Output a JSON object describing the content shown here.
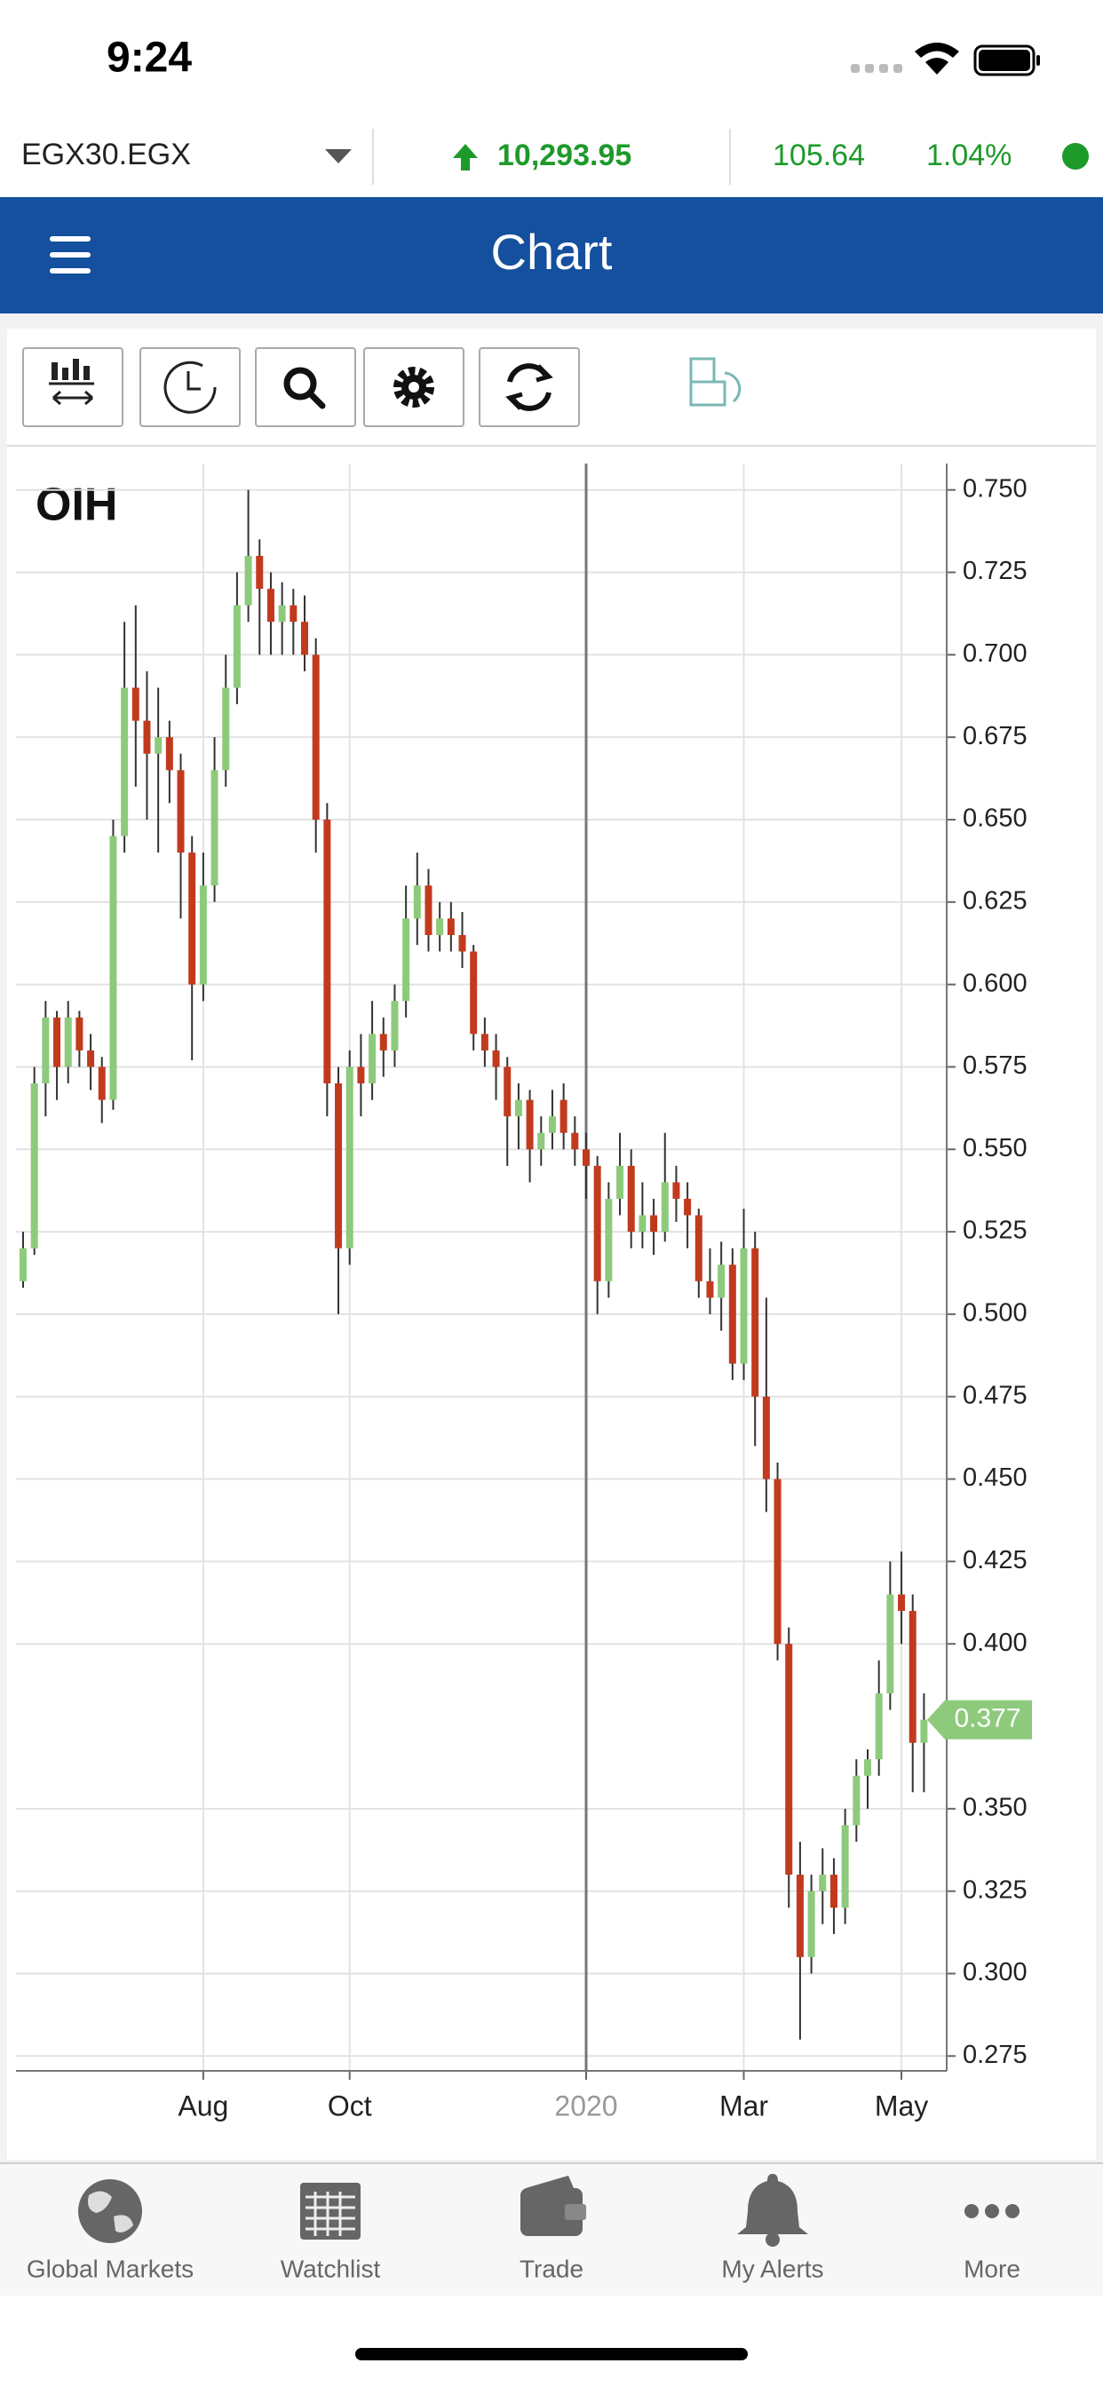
{
  "status_bar": {
    "time": "9:24"
  },
  "ticker": {
    "symbol": "EGX30.EGX",
    "price": "10,293.95",
    "change": "105.64",
    "change_pct": "1.04%"
  },
  "header": {
    "title": "Chart"
  },
  "chart_data": {
    "type": "candlestick",
    "title": "OIH",
    "categories": [
      null,
      null,
      null,
      null,
      null,
      null,
      null,
      null,
      null,
      null,
      null,
      null,
      null,
      null,
      null,
      null,
      "Aug",
      null,
      null,
      null,
      null,
      null,
      null,
      null,
      null,
      null,
      null,
      null,
      null,
      "Oct",
      null,
      null,
      null,
      null,
      null,
      null,
      null,
      null,
      null,
      null,
      null,
      null,
      null,
      null,
      null,
      null,
      null,
      null,
      null,
      null,
      "2020",
      null,
      null,
      null,
      null,
      null,
      null,
      null,
      null,
      null,
      null,
      null,
      null,
      null,
      "Mar",
      null,
      null,
      null,
      null,
      null,
      null,
      null,
      null,
      null,
      null,
      null,
      null,
      null,
      "May",
      null,
      null
    ],
    "open": [
      0.51,
      0.52,
      0.57,
      0.59,
      0.575,
      0.59,
      0.58,
      0.575,
      0.565,
      0.645,
      0.69,
      0.68,
      0.67,
      0.675,
      0.665,
      0.64,
      0.6,
      0.63,
      0.665,
      0.69,
      0.715,
      0.73,
      0.72,
      0.71,
      0.715,
      0.71,
      0.7,
      0.65,
      0.57,
      0.52,
      0.575,
      0.57,
      0.585,
      0.58,
      0.595,
      0.62,
      0.63,
      0.615,
      0.62,
      0.615,
      0.61,
      0.585,
      0.58,
      0.575,
      0.56,
      0.565,
      0.55,
      0.555,
      0.565,
      0.555,
      0.55,
      0.545,
      0.51,
      0.535,
      0.545,
      0.525,
      0.53,
      0.525,
      0.54,
      0.535,
      0.53,
      0.51,
      0.505,
      0.515,
      0.485,
      0.52,
      0.475,
      0.45,
      0.4,
      0.33,
      0.305,
      0.325,
      0.33,
      0.32,
      0.345,
      0.36,
      0.365,
      0.385,
      0.415,
      0.41,
      0.37
    ],
    "high": [
      0.525,
      0.575,
      0.595,
      0.592,
      0.595,
      0.592,
      0.585,
      0.578,
      0.65,
      0.71,
      0.715,
      0.695,
      0.69,
      0.68,
      0.67,
      0.645,
      0.64,
      0.675,
      0.7,
      0.725,
      0.75,
      0.735,
      0.725,
      0.722,
      0.72,
      0.718,
      0.705,
      0.655,
      0.575,
      0.58,
      0.585,
      0.595,
      0.59,
      0.6,
      0.63,
      0.64,
      0.635,
      0.625,
      0.625,
      0.622,
      0.612,
      0.59,
      0.585,
      0.578,
      0.57,
      0.568,
      0.56,
      0.568,
      0.57,
      0.56,
      0.555,
      0.548,
      0.54,
      0.555,
      0.55,
      0.54,
      0.535,
      0.555,
      0.545,
      0.54,
      0.532,
      0.52,
      0.522,
      0.52,
      0.532,
      0.525,
      0.505,
      0.455,
      0.405,
      0.34,
      0.33,
      0.338,
      0.335,
      0.35,
      0.365,
      0.368,
      0.395,
      0.425,
      0.428,
      0.415,
      0.385
    ],
    "low": [
      0.508,
      0.518,
      0.56,
      0.565,
      0.57,
      0.575,
      0.568,
      0.558,
      0.562,
      0.64,
      0.66,
      0.65,
      0.64,
      0.655,
      0.62,
      0.577,
      0.595,
      0.625,
      0.66,
      0.685,
      0.71,
      0.7,
      0.7,
      0.7,
      0.7,
      0.695,
      0.64,
      0.56,
      0.5,
      0.515,
      0.56,
      0.565,
      0.572,
      0.575,
      0.59,
      0.612,
      0.61,
      0.61,
      0.61,
      0.605,
      0.58,
      0.575,
      0.565,
      0.545,
      0.55,
      0.54,
      0.545,
      0.55,
      0.55,
      0.545,
      0.535,
      0.5,
      0.505,
      0.53,
      0.52,
      0.52,
      0.518,
      0.522,
      0.528,
      0.52,
      0.505,
      0.5,
      0.495,
      0.48,
      0.48,
      0.46,
      0.44,
      0.395,
      0.32,
      0.28,
      0.3,
      0.315,
      0.312,
      0.315,
      0.34,
      0.35,
      0.36,
      0.38,
      0.4,
      0.355,
      0.355
    ],
    "close": [
      0.52,
      0.57,
      0.59,
      0.575,
      0.59,
      0.58,
      0.575,
      0.565,
      0.645,
      0.69,
      0.68,
      0.67,
      0.675,
      0.665,
      0.64,
      0.6,
      0.63,
      0.665,
      0.69,
      0.715,
      0.73,
      0.72,
      0.71,
      0.715,
      0.71,
      0.7,
      0.65,
      0.57,
      0.52,
      0.575,
      0.57,
      0.585,
      0.58,
      0.595,
      0.62,
      0.63,
      0.615,
      0.62,
      0.615,
      0.61,
      0.585,
      0.58,
      0.575,
      0.56,
      0.565,
      0.55,
      0.555,
      0.56,
      0.555,
      0.55,
      0.545,
      0.51,
      0.535,
      0.545,
      0.525,
      0.53,
      0.525,
      0.54,
      0.535,
      0.53,
      0.51,
      0.505,
      0.515,
      0.485,
      0.52,
      0.475,
      0.45,
      0.4,
      0.33,
      0.305,
      0.325,
      0.33,
      0.32,
      0.345,
      0.36,
      0.365,
      0.385,
      0.415,
      0.41,
      0.37,
      0.377
    ],
    "up_color": "#8dca7c",
    "down_color": "#c23a1e",
    "wick_color": "#333333",
    "ylim": [
      0.2705,
      0.758
    ],
    "yticks": [
      0.275,
      {
        "value": 0.3,
        "label": "0.300"
      },
      0.325,
      {
        "value": 0.35,
        "label": "0.350"
      },
      {
        "value": 0.4,
        "label": "0.400"
      },
      0.425,
      {
        "value": 0.45,
        "label": "0.450"
      },
      0.475,
      {
        "value": 0.5,
        "label": "0.500"
      },
      0.525,
      {
        "value": 0.55,
        "label": "0.550"
      },
      0.575,
      {
        "value": 0.6,
        "label": "0.600"
      },
      0.625,
      {
        "value": 0.65,
        "label": "0.650"
      },
      0.675,
      {
        "value": 0.7,
        "label": "0.700"
      },
      0.725,
      {
        "value": 0.75,
        "label": "0.750"
      }
    ],
    "grid": true,
    "last_price": 0.377,
    "last_price_color": "#8dca7c"
  },
  "tab_bar": {
    "items": [
      "Global Markets",
      "Watchlist",
      "Trade",
      "My Alerts",
      "More"
    ]
  }
}
